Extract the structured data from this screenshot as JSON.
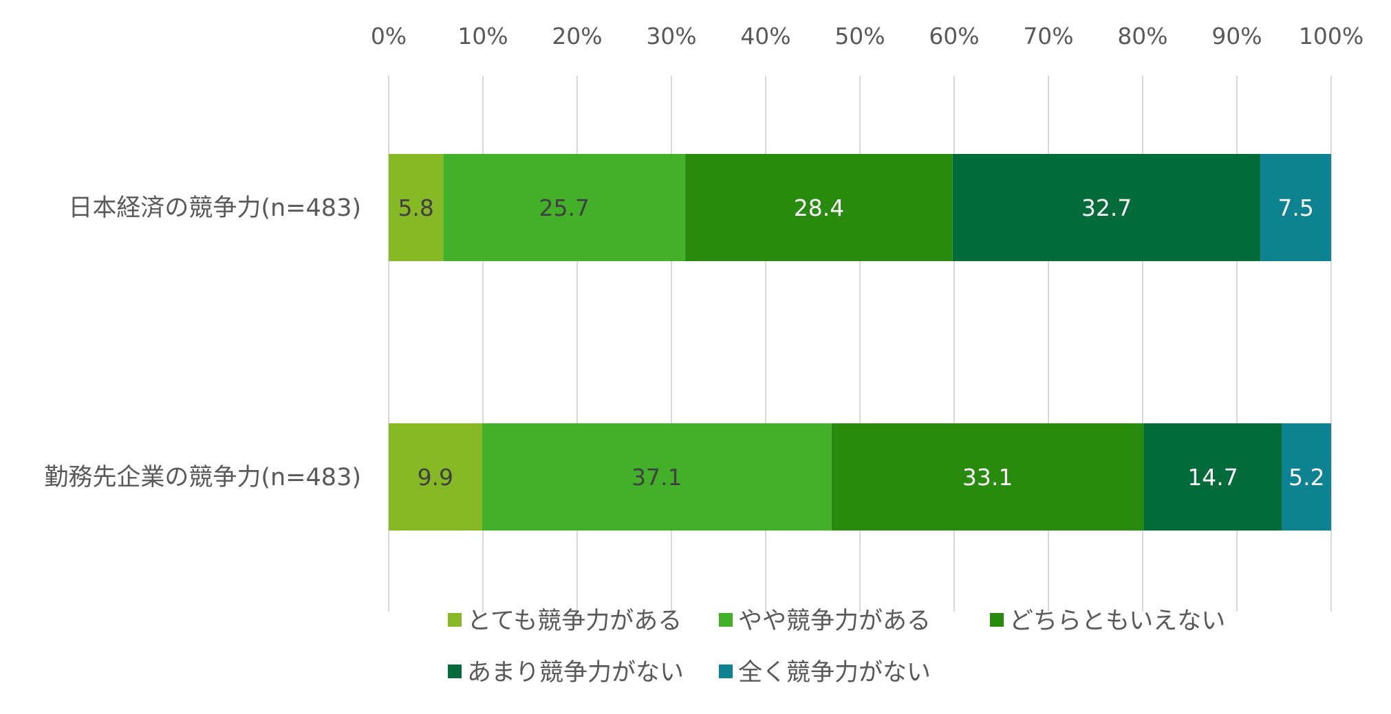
{
  "chart_data": {
    "type": "bar",
    "orientation": "horizontal",
    "stacked": "percent",
    "title": "",
    "xlabel": "",
    "ylabel": "",
    "xlim": [
      0,
      100
    ],
    "x_ticks": [
      "0%",
      "10%",
      "20%",
      "30%",
      "40%",
      "50%",
      "60%",
      "70%",
      "80%",
      "90%",
      "100%"
    ],
    "grid": "vertical",
    "legend_position": "bottom",
    "categories": [
      "日本経済の競争力(n=483)",
      "勤務先企業の競争力(n=483)"
    ],
    "series": [
      {
        "name": "とても競争力がある",
        "color": "#86B925",
        "label_color": "#404040",
        "values": [
          5.8,
          9.9
        ]
      },
      {
        "name": "やや競争力がある",
        "color": "#43B02A",
        "label_color": "#404040",
        "values": [
          25.7,
          37.1
        ]
      },
      {
        "name": "どちらともいえない",
        "color": "#288B0E",
        "label_color": "#FFFFFF",
        "values": [
          28.4,
          33.1
        ]
      },
      {
        "name": "あまり競争力がない",
        "color": "#036B39",
        "label_color": "#FFFFFF",
        "values": [
          32.7,
          14.7
        ]
      },
      {
        "name": "全く競争力がない",
        "color": "#0D8290",
        "label_color": "#FFFFFF",
        "values": [
          7.5,
          5.2
        ]
      }
    ]
  }
}
